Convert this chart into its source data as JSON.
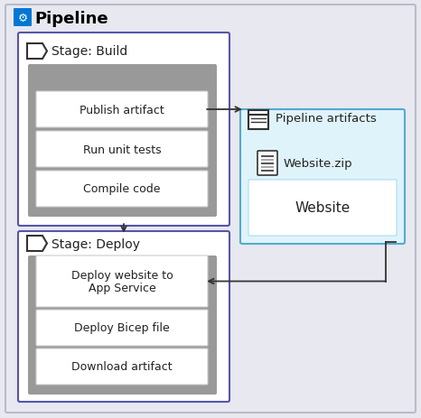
{
  "title": "Pipeline",
  "bg_outer": "#e8e8f0",
  "bg_inner": "#e8e8f0",
  "stage_build_label": "Stage: Build",
  "stage_deploy_label": "Stage: Deploy",
  "artifacts_label": "Pipeline artifacts",
  "build_steps": [
    "Compile code",
    "Run unit tests",
    "Publish artifact"
  ],
  "deploy_steps": [
    "Download artifact",
    "Deploy Bicep file",
    "Deploy website to\nApp Service"
  ],
  "artifact_name": "Website",
  "artifact_file": "Website.zip",
  "box_bg": "#ffffff",
  "box_border": "#6b6b6b",
  "stage_box_border": "#5555aa",
  "artifacts_box_bg": "#dff3fa",
  "artifacts_box_border": "#55aacc",
  "inner_box_bg": "#aaaaaa",
  "step_bg": "#ffffff",
  "arrow_color": "#333333",
  "title_color": "#000000",
  "text_color": "#222222"
}
